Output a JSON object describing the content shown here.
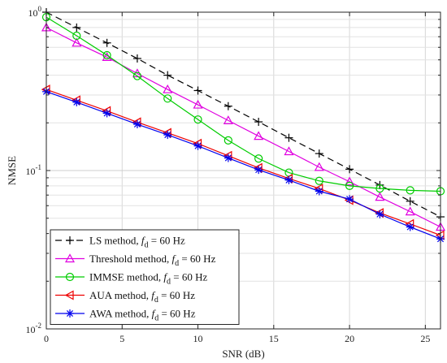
{
  "chart_data": {
    "type": "line",
    "xlabel": "SNR (dB)",
    "ylabel": "NMSE",
    "xlim": [
      0,
      26
    ],
    "ylim": [
      0.01,
      1
    ],
    "yscale": "log",
    "x_ticks": [
      "0",
      "5",
      "10",
      "15",
      "20",
      "25"
    ],
    "x_tick_values": [
      0,
      5,
      10,
      15,
      20,
      25
    ],
    "y_ticks": [
      {
        "value": 1,
        "base": "10",
        "exp": "0"
      },
      {
        "value": 0.1,
        "base": "10",
        "exp": "-1"
      },
      {
        "value": 0.01,
        "base": "10",
        "exp": "-2"
      }
    ],
    "grid": true,
    "legend_position": "bottom-left",
    "legend_suffix": ", ",
    "legend_fd": {
      "f": "f",
      "sub": "d",
      "value": " = 60 Hz"
    },
    "x": [
      0,
      2,
      4,
      6,
      8,
      10,
      12,
      14,
      16,
      18,
      20,
      22,
      24,
      26
    ],
    "series": [
      {
        "name": "LS method",
        "color": "#000000",
        "dash": "8,5",
        "marker": "plus",
        "values": [
          1.0,
          0.8,
          0.64,
          0.51,
          0.4,
          0.32,
          0.255,
          0.203,
          0.161,
          0.128,
          0.102,
          0.081,
          0.064,
          0.051
        ]
      },
      {
        "name": "Threshold method",
        "color": "#e000e0",
        "dash": "",
        "marker": "triangle-up",
        "values": [
          0.8,
          0.64,
          0.52,
          0.41,
          0.325,
          0.26,
          0.207,
          0.165,
          0.132,
          0.105,
          0.085,
          0.068,
          0.055,
          0.044
        ]
      },
      {
        "name": "IMMSE method",
        "color": "#00cc00",
        "dash": "",
        "marker": "circle",
        "values": [
          0.93,
          0.71,
          0.535,
          0.395,
          0.285,
          0.21,
          0.155,
          0.119,
          0.097,
          0.086,
          0.08,
          0.077,
          0.075,
          0.074
        ]
      },
      {
        "name": "AUA method",
        "color": "#ee0000",
        "dash": "",
        "marker": "triangle-left",
        "values": [
          0.325,
          0.278,
          0.238,
          0.202,
          0.173,
          0.148,
          0.124,
          0.104,
          0.089,
          0.077,
          0.065,
          0.054,
          0.046,
          0.039
        ]
      },
      {
        "name": "AWA method",
        "color": "#0000ee",
        "dash": "",
        "marker": "asterisk",
        "values": [
          0.315,
          0.27,
          0.23,
          0.196,
          0.168,
          0.143,
          0.12,
          0.101,
          0.087,
          0.074,
          0.066,
          0.053,
          0.044,
          0.037
        ]
      }
    ]
  }
}
